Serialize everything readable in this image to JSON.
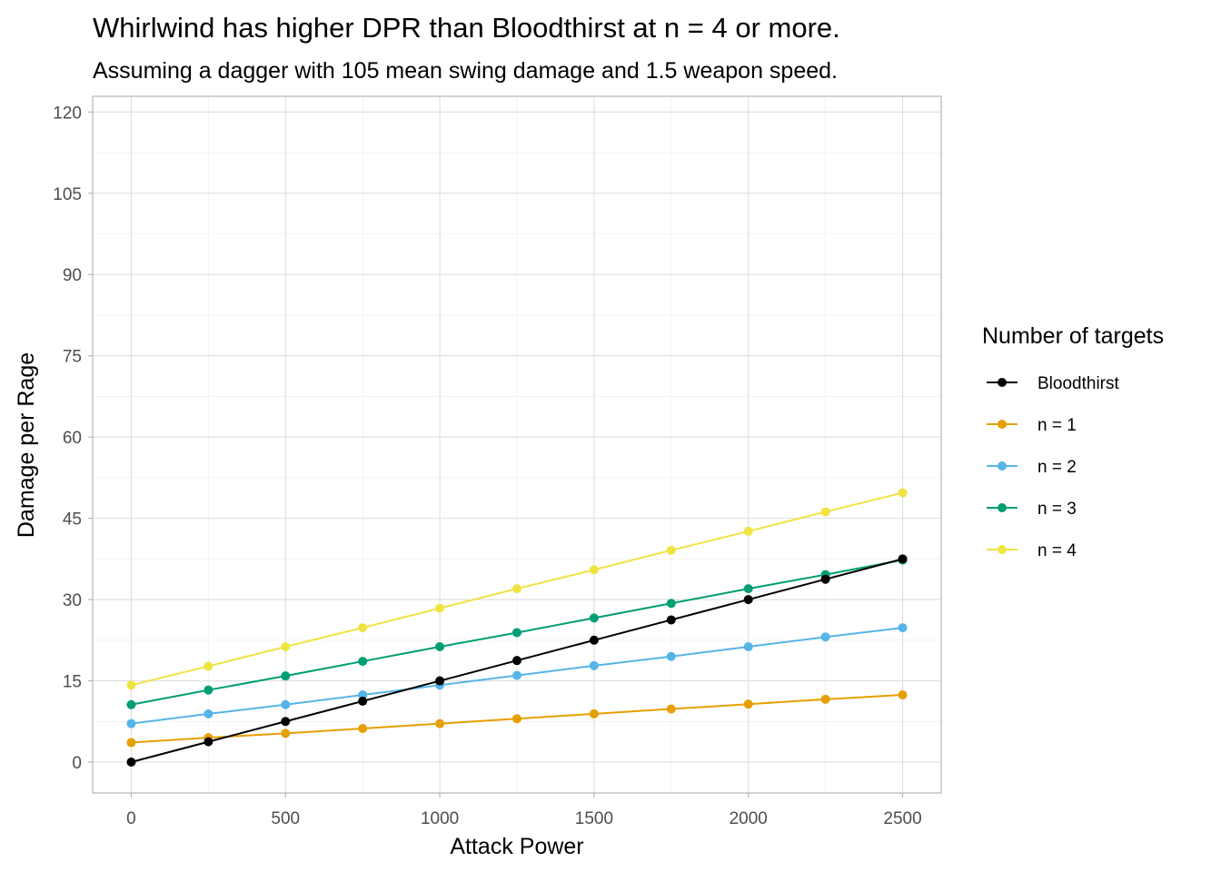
{
  "chart_data": {
    "type": "line",
    "title": "Whirlwind has higher DPR than Bloodthirst at n = 4 or more.",
    "subtitle": "Assuming a dagger with 105 mean swing damage and 1.5 weapon speed.",
    "xlabel": "Attack Power",
    "ylabel": "Damage per Rage",
    "x": [
      0,
      250,
      500,
      750,
      1000,
      1250,
      1500,
      1750,
      2000,
      2250,
      2500
    ],
    "xlim": [
      -125,
      2625
    ],
    "ylim": [
      -5.7,
      122.9
    ],
    "x_ticks": [
      0,
      500,
      1000,
      1500,
      2000,
      2500
    ],
    "x_tick_labels": [
      "0",
      "500",
      "1000",
      "1500",
      "2000",
      "2500"
    ],
    "y_ticks": [
      0,
      15,
      30,
      45,
      60,
      75,
      90,
      105,
      120
    ],
    "y_tick_labels": [
      "0",
      "15",
      "30",
      "45",
      "60",
      "75",
      "90",
      "105",
      "120"
    ],
    "grid": true,
    "legend": {
      "title": "Number of targets",
      "position": "right"
    },
    "series": [
      {
        "name": "Bloodthirst",
        "color": "#000000",
        "values": [
          0.0,
          3.75,
          7.5,
          11.25,
          15.0,
          18.75,
          22.5,
          26.25,
          30.0,
          33.75,
          37.5
        ]
      },
      {
        "name": "n = 1",
        "color": "#E69F00",
        "values": [
          3.6,
          4.5,
          5.3,
          6.2,
          7.1,
          8.0,
          8.9,
          9.8,
          10.7,
          11.6,
          12.4
        ]
      },
      {
        "name": "n = 2",
        "color": "#56B4E9",
        "values": [
          7.1,
          8.9,
          10.6,
          12.4,
          14.2,
          16.0,
          17.8,
          19.5,
          21.3,
          23.1,
          24.8
        ]
      },
      {
        "name": "n = 3",
        "color": "#009E73",
        "values": [
          10.6,
          13.3,
          15.9,
          18.6,
          21.3,
          23.9,
          26.6,
          29.3,
          32.0,
          34.6,
          37.3
        ]
      },
      {
        "name": "n = 4",
        "color": "#F0E442",
        "values": [
          14.2,
          17.7,
          21.3,
          24.8,
          28.4,
          32.0,
          35.5,
          39.1,
          42.6,
          46.2,
          49.7
        ]
      }
    ]
  }
}
